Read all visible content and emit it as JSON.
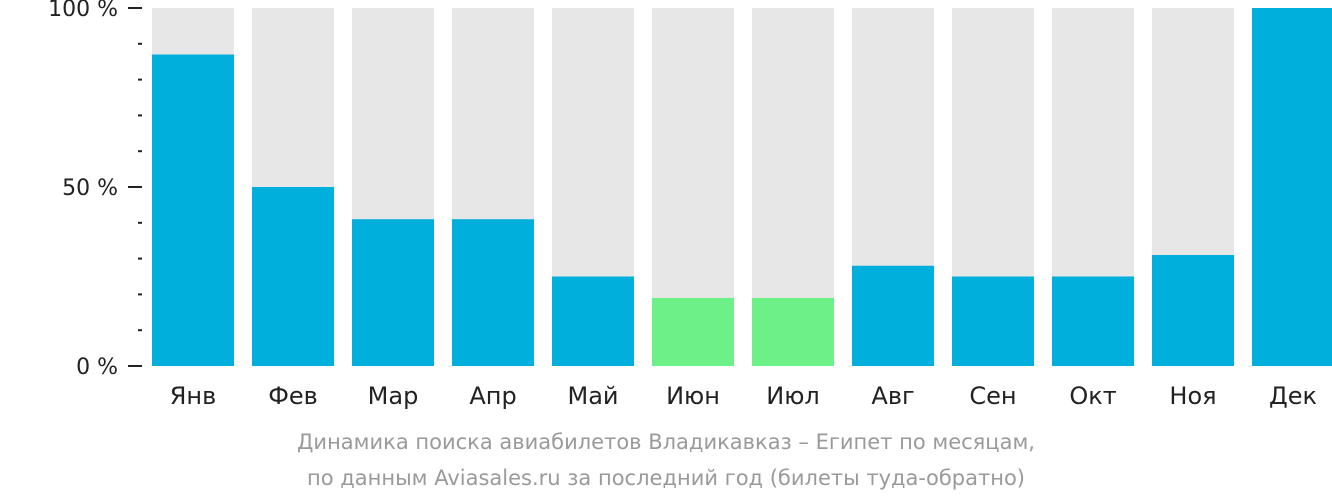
{
  "chart_data": {
    "type": "bar",
    "categories": [
      "Янв",
      "Фев",
      "Мар",
      "Апр",
      "Май",
      "Июн",
      "Июл",
      "Авг",
      "Сен",
      "Окт",
      "Ноя",
      "Дек"
    ],
    "values": [
      87,
      50,
      41,
      41,
      25,
      19,
      19,
      28,
      25,
      25,
      31,
      100
    ],
    "highlight": [
      false,
      false,
      false,
      false,
      false,
      true,
      true,
      false,
      false,
      false,
      false,
      false
    ],
    "ylim": [
      0,
      100
    ],
    "yticks": [
      {
        "value": 100,
        "label": "100 %"
      },
      {
        "value": 50,
        "label": "50 %"
      },
      {
        "value": 0,
        "label": "0 %"
      }
    ],
    "minor_tick_step": 10,
    "colors": {
      "bar": "#00afdb",
      "bar_highlight": "#6df088",
      "background_bar": "#e7e7e7",
      "axis": "#222222"
    }
  },
  "caption": {
    "line1": "Динамика поиска авиабилетов Владикавказ – Египет по месяцам,",
    "line2": "по данным Aviasales.ru за последний год (билеты туда-обратно)"
  }
}
